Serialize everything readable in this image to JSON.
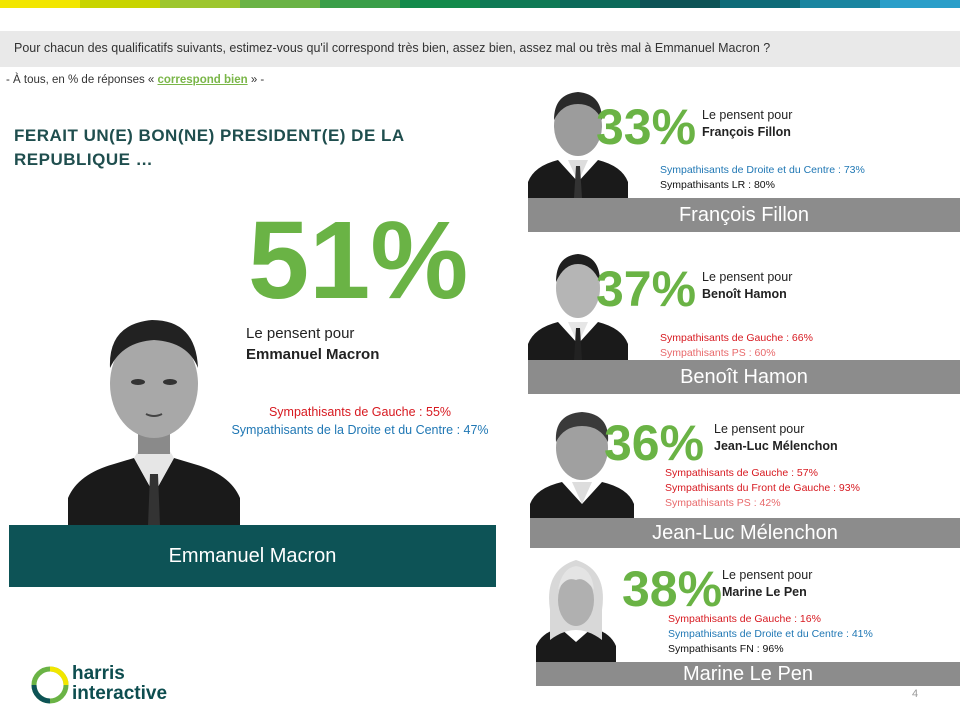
{
  "question": "Pour chacun des qualificatifs suivants, estimez-vous qu'il correspond très bien, assez bien, assez mal ou très mal à Emmanuel Macron ?",
  "basis": {
    "prefix": "- À tous, en % de réponses « ",
    "highlight": "correspond bien",
    "suffix": " » -"
  },
  "headline": "FERAIT UN(E) BON(NE) PRESIDENT(E) DE LA REPUBLIQUE …",
  "colors": {
    "accent_green": "#6ab345",
    "dark_teal": "#0d5356",
    "name_bar_grey": "#8c8c8c",
    "gauche_red": "#d71920",
    "ps_pink": "#e8696b",
    "droite_blue": "#1f77b4"
  },
  "top_stripe_colors": [
    "#f2e600",
    "#c8d400",
    "#9dc62e",
    "#6ab345",
    "#3a9e48",
    "#138a4b",
    "#0f7a55",
    "#0c6a5a",
    "#0d5356",
    "#0e6b78",
    "#1a85a0",
    "#2a9ec9"
  ],
  "main": {
    "name": "Emmanuel Macron",
    "pct": "51%",
    "label_line1": "Le pensent pour",
    "label_line2": "Emmanuel Macron",
    "sub": [
      {
        "text": "Sympathisants de Gauche : 55%",
        "color": "red"
      },
      {
        "text": "Sympathisants de la Droite et du Centre : 47%",
        "color": "blue"
      }
    ]
  },
  "candidates": [
    {
      "name": "François Fillon",
      "pct": "33%",
      "label_line1": "Le pensent pour",
      "label_line2": "François Fillon",
      "sub": [
        {
          "text": "Sympathisants de Droite et du Centre : 73%",
          "color": "blue"
        },
        {
          "text": "Sympathisants LR : 80%",
          "color": "dark"
        }
      ]
    },
    {
      "name": "Benoît Hamon",
      "pct": "37%",
      "label_line1": "Le pensent pour",
      "label_line2": "Benoît Hamon",
      "sub": [
        {
          "text": "Sympathisants de Gauche : 66%",
          "color": "red"
        },
        {
          "text": "Sympathisants PS : 60%",
          "color": "pink"
        }
      ]
    },
    {
      "name": "Jean-Luc Mélenchon",
      "pct": "36%",
      "label_line1": "Le pensent pour",
      "label_line2": "Jean-Luc Mélenchon",
      "sub": [
        {
          "text": "Sympathisants de Gauche : 57%",
          "color": "red"
        },
        {
          "text": "Sympathisants du Front de Gauche : 93%",
          "color": "red"
        },
        {
          "text": "Sympathisants PS : 42%",
          "color": "pink"
        }
      ]
    },
    {
      "name": "Marine Le Pen",
      "pct": "38%",
      "label_line1": "Le pensent pour",
      "label_line2": "Marine Le Pen",
      "sub": [
        {
          "text": "Sympathisants de Gauche : 16%",
          "color": "red"
        },
        {
          "text": "Sympathisants de Droite et du Centre : 41%",
          "color": "blue"
        },
        {
          "text": "Sympathisants FN : 96%",
          "color": "dark"
        }
      ]
    }
  ],
  "chart_data": {
    "type": "bar",
    "title": "FERAIT UN(E) BON(NE) PRESIDENT(E) DE LA REPUBLIQUE …",
    "categories": [
      "Emmanuel Macron",
      "François Fillon",
      "Benoît Hamon",
      "Jean-Luc Mélenchon",
      "Marine Le Pen"
    ],
    "values": [
      51,
      33,
      37,
      36,
      38
    ],
    "unit": "%",
    "breakdowns": {
      "Emmanuel Macron": {
        "Sympathisants de Gauche": 55,
        "Sympathisants de la Droite et du Centre": 47
      },
      "François Fillon": {
        "Sympathisants de Droite et du Centre": 73,
        "Sympathisants LR": 80
      },
      "Benoît Hamon": {
        "Sympathisants de Gauche": 66,
        "Sympathisants PS": 60
      },
      "Jean-Luc Mélenchon": {
        "Sympathisants de Gauche": 57,
        "Sympathisants du Front de Gauche": 93,
        "Sympathisants PS": 42
      },
      "Marine Le Pen": {
        "Sympathisants de Gauche": 16,
        "Sympathisants de Droite et du Centre": 41,
        "Sympathisants FN": 96
      }
    }
  },
  "logo": {
    "line1": "harris",
    "line2": "interactive"
  },
  "page_number": "4"
}
